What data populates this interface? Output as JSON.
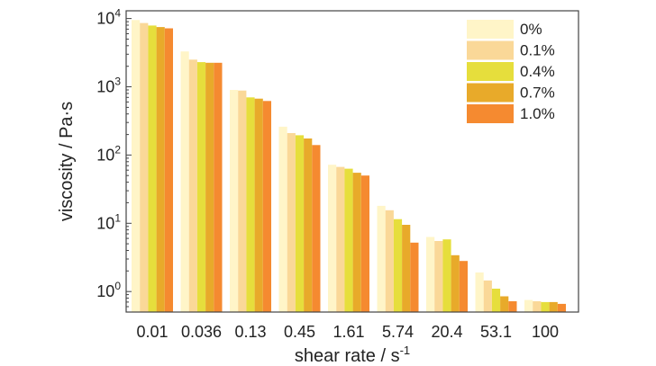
{
  "chart_data": {
    "type": "bar",
    "xlabel": "shear rate / s",
    "xlabel_sup": "-1",
    "ylabel": "viscosity / Pa·s",
    "yscale": "log",
    "ylim": [
      0.5,
      13000
    ],
    "y_ticks": [
      {
        "value": 1,
        "base": "10",
        "exp": "0"
      },
      {
        "value": 10,
        "base": "10",
        "exp": "1"
      },
      {
        "value": 100,
        "base": "10",
        "exp": "2"
      },
      {
        "value": 1000,
        "base": "10",
        "exp": "3"
      },
      {
        "value": 10000,
        "base": "10",
        "exp": "4"
      }
    ],
    "categories": [
      "0.01",
      "0.036",
      "0.13",
      "0.45",
      "1.61",
      "5.74",
      "20.4",
      "53.1",
      "100"
    ],
    "legend_position": "top-right",
    "series": [
      {
        "name": "0%",
        "color": "#FFF5C8",
        "values": [
          9500,
          3300,
          900,
          260,
          72,
          18,
          6.3,
          1.9,
          0.75
        ]
      },
      {
        "name": "0.1%",
        "color": "#FAD898",
        "values": [
          8600,
          2500,
          880,
          210,
          67,
          15.5,
          5.5,
          1.45,
          0.72
        ]
      },
      {
        "name": "0.4%",
        "color": "#E6DE3C",
        "values": [
          7900,
          2300,
          700,
          195,
          63,
          11.5,
          5.8,
          1.1,
          0.7
        ]
      },
      {
        "name": "0.7%",
        "color": "#E8AA2A",
        "values": [
          7500,
          2250,
          670,
          175,
          55,
          9.5,
          3.4,
          0.85,
          0.7
        ]
      },
      {
        "name": "1.0%",
        "color": "#F58A30",
        "values": [
          7200,
          2250,
          620,
          140,
          50,
          5.2,
          2.8,
          0.72,
          0.66
        ]
      }
    ]
  }
}
